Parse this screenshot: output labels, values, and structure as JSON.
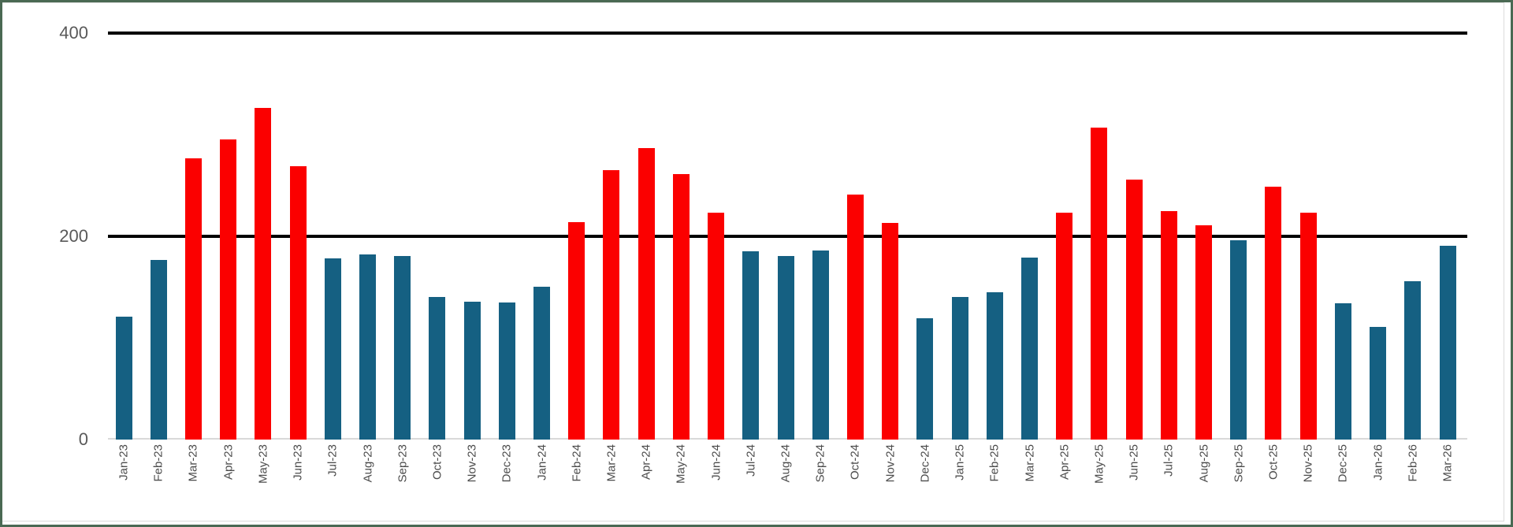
{
  "window": {
    "border_color": "#4a6953",
    "panel_background": "#ffffff",
    "panel_border_color": "#dcdcdc"
  },
  "chart_data": {
    "type": "bar",
    "title": "",
    "xlabel": "",
    "ylabel": "",
    "ylim": [
      0,
      400
    ],
    "y_ticks": [
      "0",
      "200",
      "400"
    ],
    "y_gridline_values": [
      200,
      400
    ],
    "gridline_color": "#000000",
    "axis_line_color": "#d9d9d9",
    "tick_label_color": "#595959",
    "legend": "none",
    "palette": {
      "teal": "#156082",
      "red": "#fb0000"
    },
    "color_rule": "red if value > 200 else teal",
    "categories": [
      "Jan-23",
      "Feb-23",
      "Mar-23",
      "Apr-23",
      "May-23",
      "Jun-23",
      "Jul-23",
      "Aug-23",
      "Sep-23",
      "Oct-23",
      "Nov-23",
      "Dec-23",
      "Jan-24",
      "Feb-24",
      "Mar-24",
      "Apr-24",
      "May-24",
      "Jun-24",
      "Jul-24",
      "Aug-24",
      "Sep-24",
      "Oct-24",
      "Nov-24",
      "Dec-24",
      "Jan-25",
      "Feb-25",
      "Mar-25",
      "Apr-25",
      "May-25",
      "Jun-25",
      "Jul-25",
      "Aug-25",
      "Sep-25",
      "Oct-25",
      "Nov-25",
      "Dec-25",
      "Jan-26",
      "Feb-26",
      "Mar-26"
    ],
    "values": [
      121,
      177,
      277,
      295,
      326,
      269,
      178,
      182,
      181,
      140,
      136,
      135,
      150,
      214,
      265,
      287,
      261,
      223,
      185,
      181,
      186,
      241,
      213,
      119,
      140,
      145,
      179,
      223,
      307,
      256,
      225,
      211,
      196,
      249,
      223,
      134,
      111,
      156,
      191
    ],
    "bar_colors": [
      "teal",
      "teal",
      "red",
      "red",
      "red",
      "red",
      "teal",
      "teal",
      "teal",
      "teal",
      "teal",
      "teal",
      "teal",
      "red",
      "red",
      "red",
      "red",
      "red",
      "teal",
      "teal",
      "teal",
      "red",
      "red",
      "teal",
      "teal",
      "teal",
      "teal",
      "red",
      "red",
      "red",
      "red",
      "red",
      "teal",
      "red",
      "red",
      "teal",
      "teal",
      "teal",
      "teal"
    ]
  }
}
